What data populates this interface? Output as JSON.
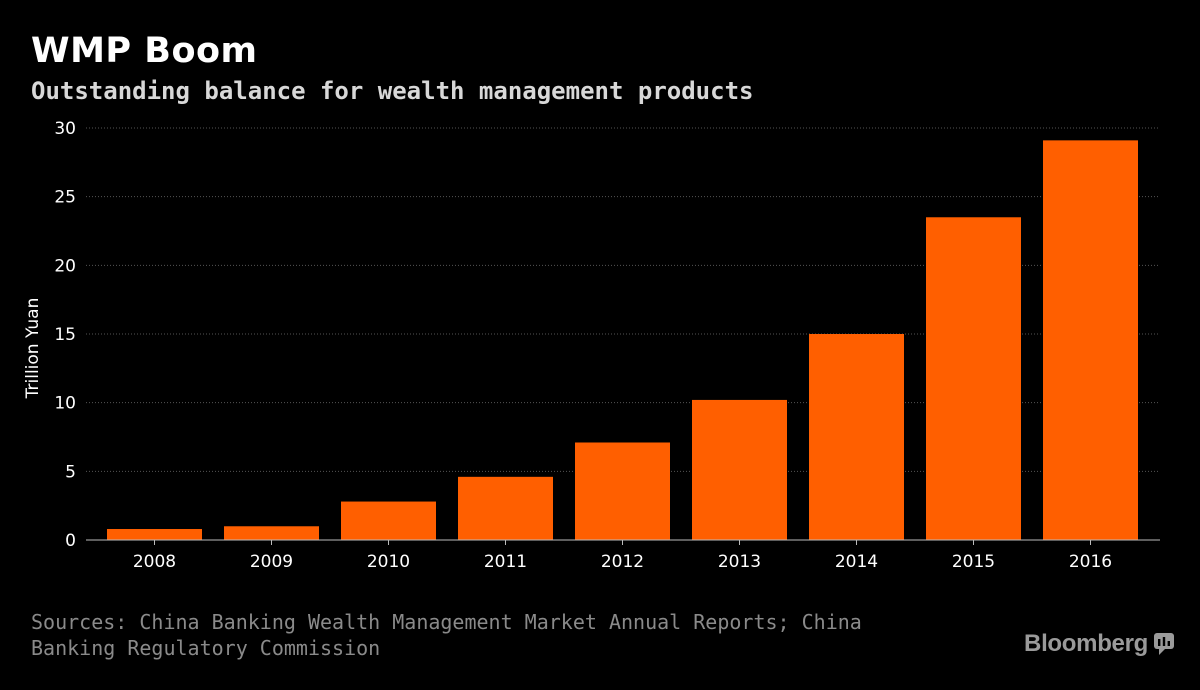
{
  "title": "WMP Boom",
  "subtitle": "Outstanding balance for wealth management products",
  "source": "Sources: China Banking Wealth Management Market Annual Reports; China Banking Regulatory Commission",
  "brand": "Bloomberg",
  "colors": {
    "background": "#000000",
    "bar": "#ff5f00",
    "grid": "#555555",
    "axis": "#bbbbbb"
  },
  "chart_data": {
    "type": "bar",
    "title": "WMP Boom",
    "subtitle": "Outstanding balance for wealth management products",
    "xlabel": "",
    "ylabel": "Trillion Yuan",
    "categories": [
      "2008",
      "2009",
      "2010",
      "2011",
      "2012",
      "2013",
      "2014",
      "2015",
      "2016"
    ],
    "values": [
      0.8,
      1.0,
      2.8,
      4.6,
      7.1,
      10.2,
      15.0,
      23.5,
      29.1
    ],
    "ylim": [
      0,
      30
    ],
    "yticks": [
      0,
      5,
      10,
      15,
      20,
      25,
      30
    ],
    "grid": true,
    "legend": "none"
  }
}
